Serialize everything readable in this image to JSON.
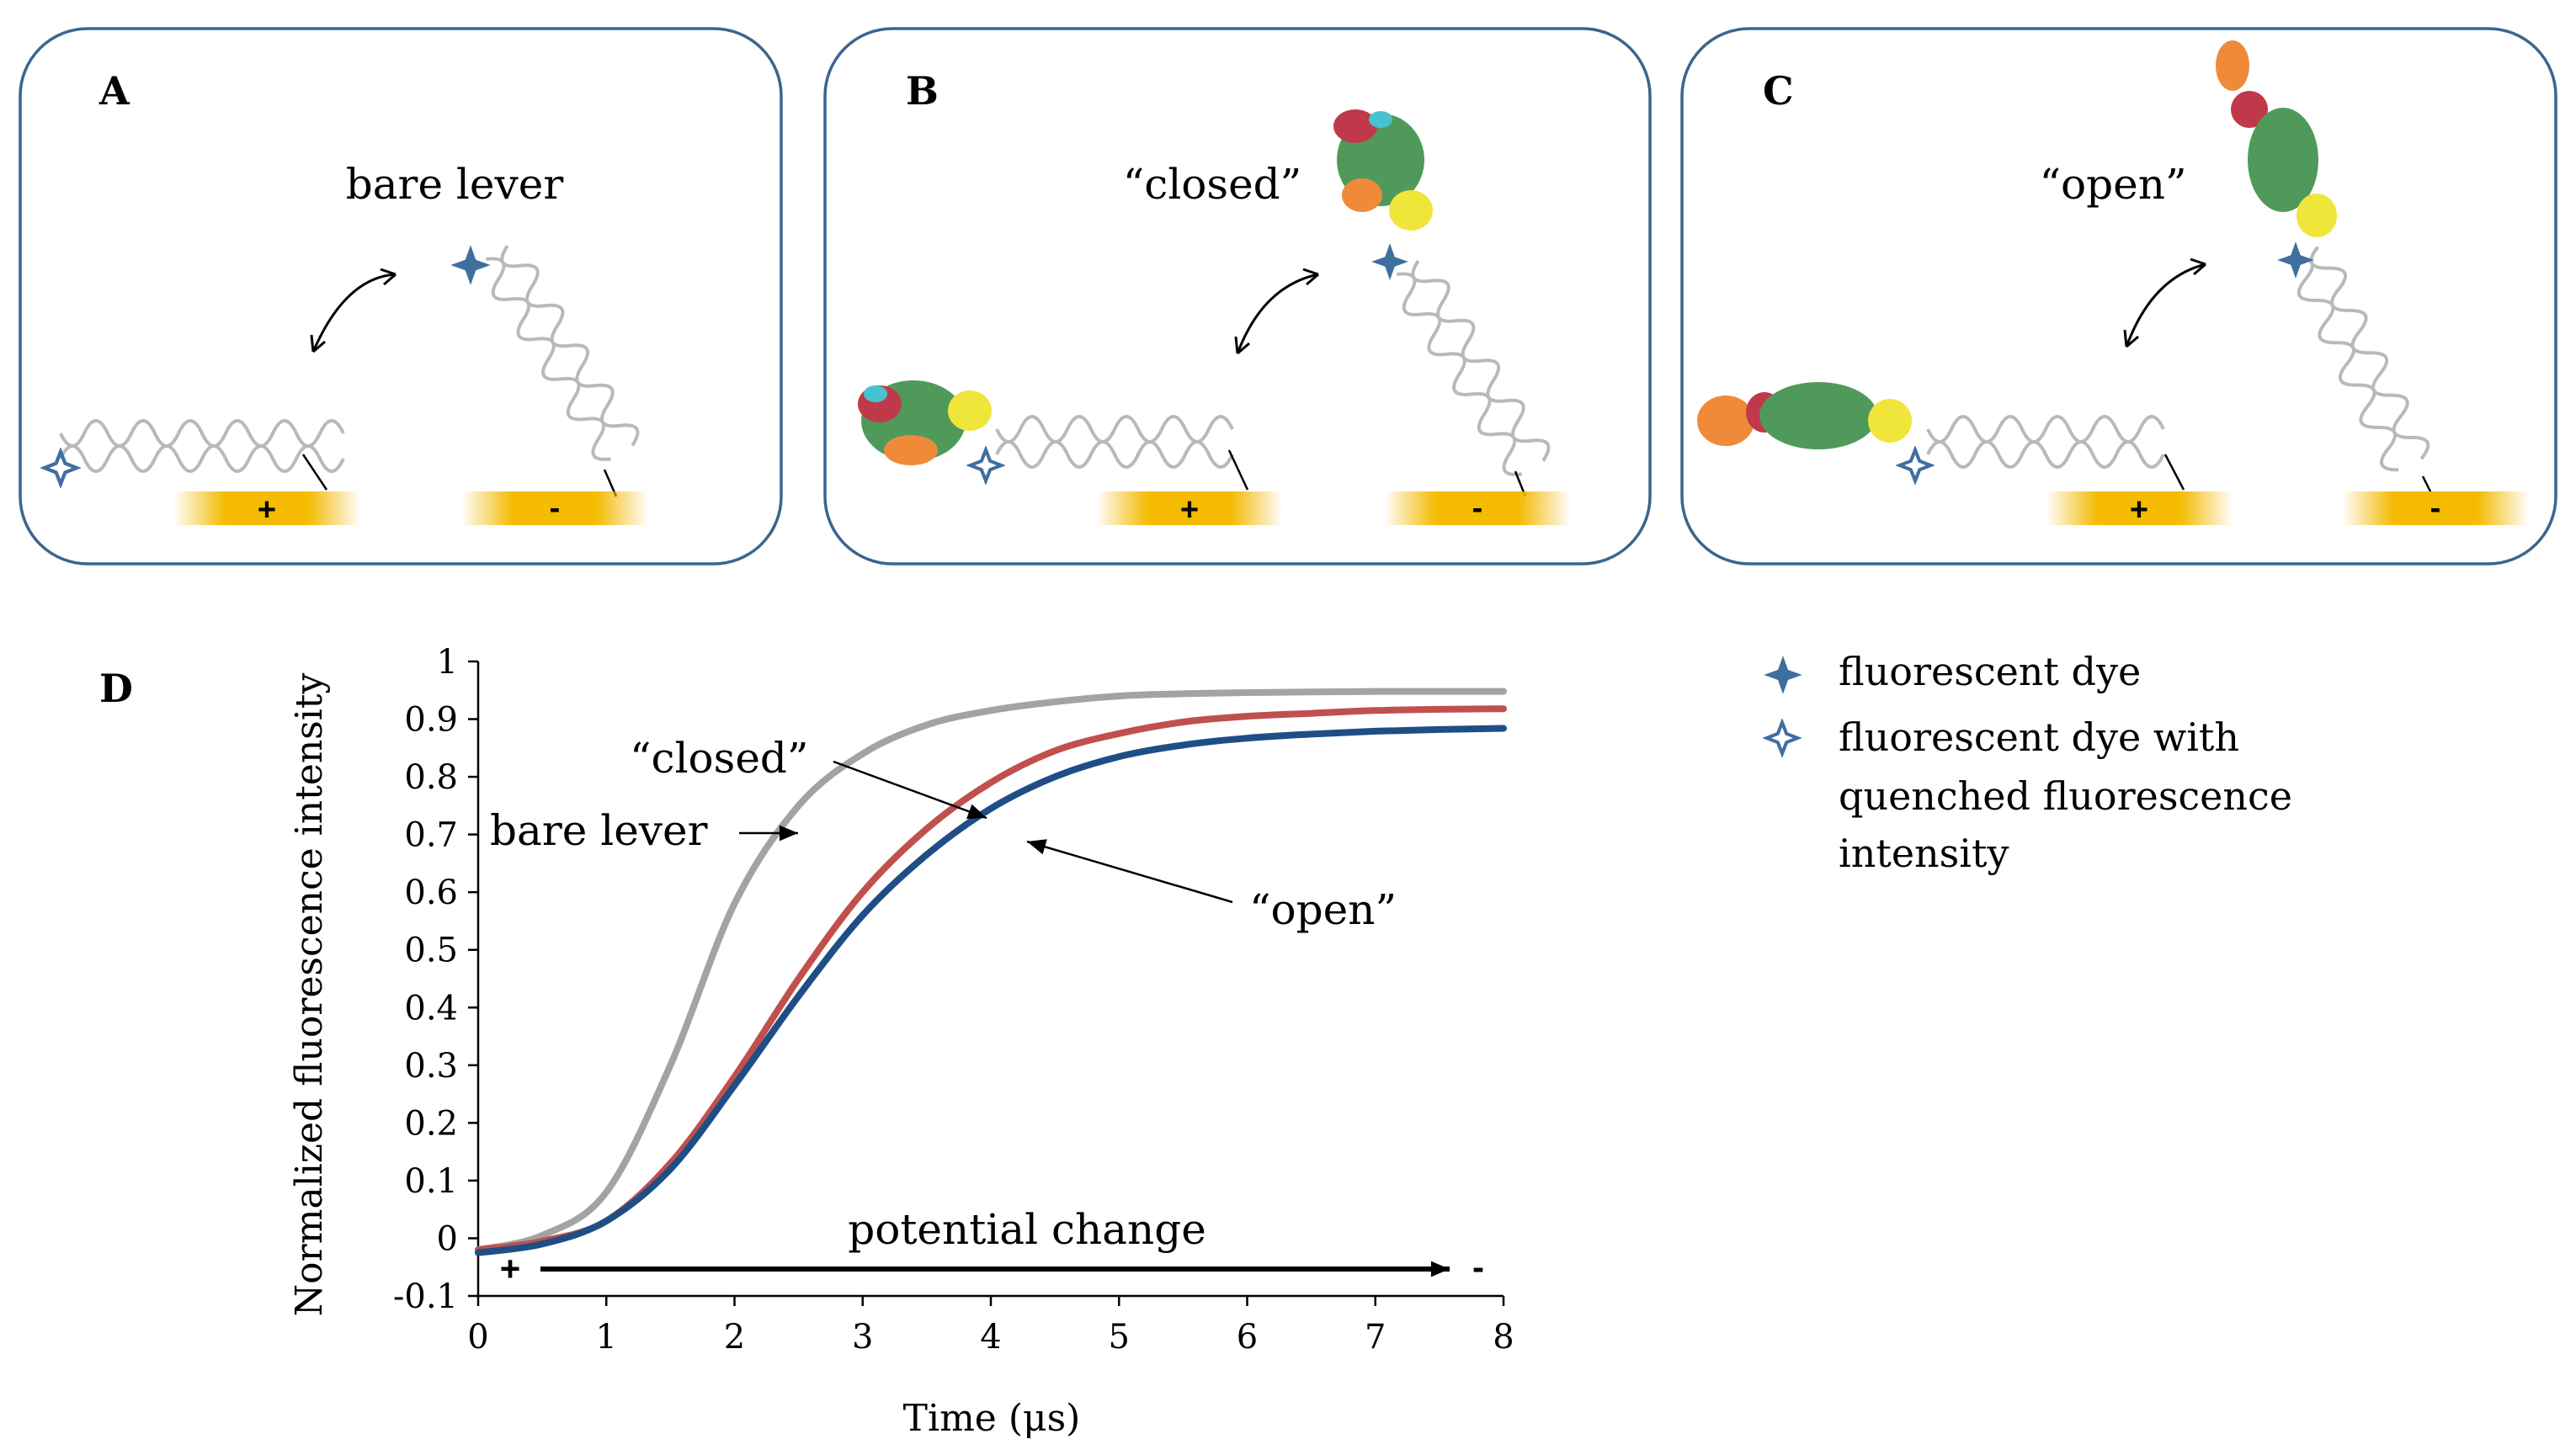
{
  "panels": [
    {
      "letter": "A",
      "caption": "bare lever",
      "plus": "+",
      "minus": "-"
    },
    {
      "letter": "B",
      "caption": "“closed”",
      "plus": "+",
      "minus": "-"
    },
    {
      "letter": "C",
      "caption": "“open”",
      "plus": "+",
      "minus": "-"
    }
  ],
  "legend": {
    "dye": "fluorescent dye",
    "quenched_line1": "fluorescent dye with",
    "quenched_line2": "quenched fluorescence",
    "quenched_line3": "intensity"
  },
  "colors": {
    "panel_border": "#3a6590",
    "star": "#3f6f9e",
    "electrode": "#f2b600",
    "helix": "#b9b9b9",
    "bare": "#a3a3a3",
    "closed": "#c0504d",
    "open": "#1f4e86"
  },
  "chart_data": {
    "type": "line",
    "panel_letter": "D",
    "xlabel": "Time (μs)",
    "ylabel": "Normalized fluorescence intensity",
    "xlim": [
      0,
      8
    ],
    "ylim": [
      -0.1,
      1
    ],
    "x_ticks": [
      "0",
      "1",
      "2",
      "3",
      "4",
      "5",
      "6",
      "7",
      "8"
    ],
    "y_ticks": [
      "-0.1",
      "0",
      "0.1",
      "0.2",
      "0.3",
      "0.4",
      "0.5",
      "0.6",
      "0.7",
      "0.8",
      "0.9",
      "1"
    ],
    "x": [
      0,
      0.5,
      1,
      1.5,
      2,
      2.5,
      3,
      3.5,
      4,
      4.5,
      5,
      5.5,
      6,
      6.5,
      7,
      7.5,
      8
    ],
    "series": [
      {
        "name": "bare lever",
        "color": "#a3a3a3",
        "values": [
          -0.02,
          0.005,
          0.08,
          0.3,
          0.58,
          0.75,
          0.84,
          0.89,
          0.915,
          0.93,
          0.94,
          0.944,
          0.946,
          0.947,
          0.948,
          0.948,
          0.948
        ]
      },
      {
        "name": "“closed”",
        "color": "#c0504d",
        "values": [
          -0.02,
          -0.005,
          0.03,
          0.13,
          0.28,
          0.45,
          0.6,
          0.71,
          0.79,
          0.845,
          0.875,
          0.895,
          0.905,
          0.91,
          0.915,
          0.917,
          0.918
        ]
      },
      {
        "name": "“open”",
        "color": "#1f4e86",
        "values": [
          -0.025,
          -0.01,
          0.03,
          0.12,
          0.265,
          0.42,
          0.56,
          0.665,
          0.745,
          0.8,
          0.835,
          0.855,
          0.867,
          0.874,
          0.879,
          0.882,
          0.884
        ]
      }
    ],
    "annotations": {
      "bare": "bare lever",
      "closed": "“closed”",
      "open": "“open”",
      "potential": "potential change",
      "plus": "+",
      "minus": "-"
    }
  }
}
